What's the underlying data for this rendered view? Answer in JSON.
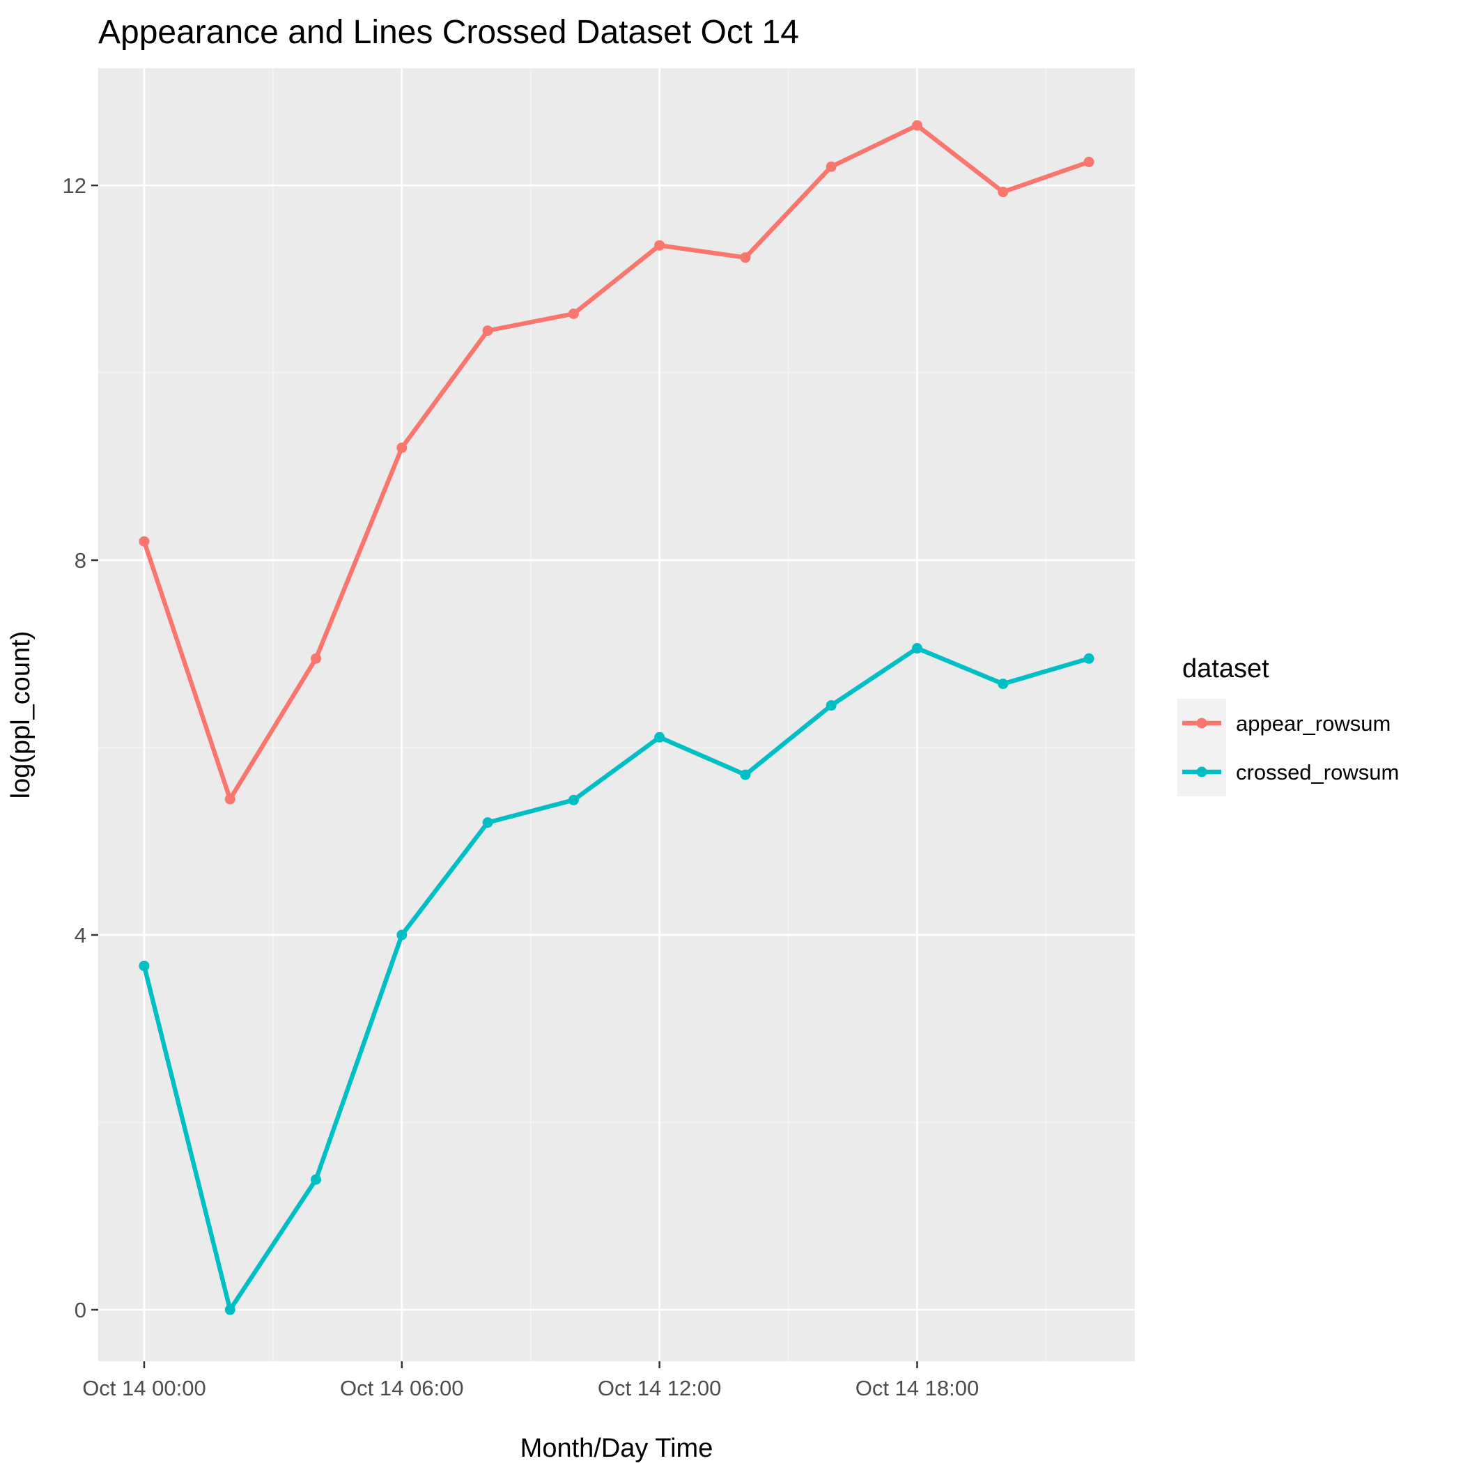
{
  "chart_data": {
    "type": "line",
    "title": "Appearance and Lines Crossed Dataset Oct 14",
    "xlabel": "Month/Day Time",
    "ylabel": "log(ppl_count)",
    "x": [
      "Oct 14 00:00",
      "Oct 14 02:00",
      "Oct 14 04:00",
      "Oct 14 06:00",
      "Oct 14 08:00",
      "Oct 14 10:00",
      "Oct 14 12:00",
      "Oct 14 14:00",
      "Oct 14 16:00",
      "Oct 14 18:00",
      "Oct 14 20:00",
      "Oct 14 22:00"
    ],
    "x_hours": [
      0,
      2,
      4,
      6,
      8,
      10,
      12,
      14,
      16,
      18,
      20,
      22
    ],
    "xlim_hours": [
      -1.07,
      23.07
    ],
    "x_tick_hours": [
      0,
      6,
      12,
      18
    ],
    "x_minor_tick_hours": [
      3,
      9,
      15,
      21
    ],
    "x_tick_labels": [
      "Oct 14 00:00",
      "Oct 14 06:00",
      "Oct 14 12:00",
      "Oct 14 18:00"
    ],
    "ylim": [
      -0.55,
      13.25
    ],
    "y_ticks": [
      0,
      4,
      8,
      12
    ],
    "y_minor_ticks": [
      2,
      6,
      10
    ],
    "y_tick_labels": [
      "0",
      "4",
      "8",
      "12"
    ],
    "grid": true,
    "legend": {
      "title": "dataset",
      "position": "right"
    },
    "series": [
      {
        "name": "appear_rowsum",
        "color": "#F8766D",
        "values": [
          8.2,
          5.45,
          6.95,
          9.2,
          10.45,
          10.63,
          11.36,
          11.23,
          12.2,
          12.64,
          11.93,
          12.25
        ]
      },
      {
        "name": "crossed_rowsum",
        "color": "#00BFC4",
        "values": [
          3.67,
          0.0,
          1.39,
          4.0,
          5.2,
          5.44,
          6.11,
          5.71,
          6.45,
          7.06,
          6.68,
          6.95
        ]
      }
    ],
    "colors": {
      "panel_background": "#EBEBEB",
      "grid_major": "#FFFFFF",
      "grid_minor": "#F5F5F5",
      "tick_text": "#4D4D4D",
      "tick_mark": "#333333",
      "legend_key_background": "#F2F2F2"
    }
  }
}
